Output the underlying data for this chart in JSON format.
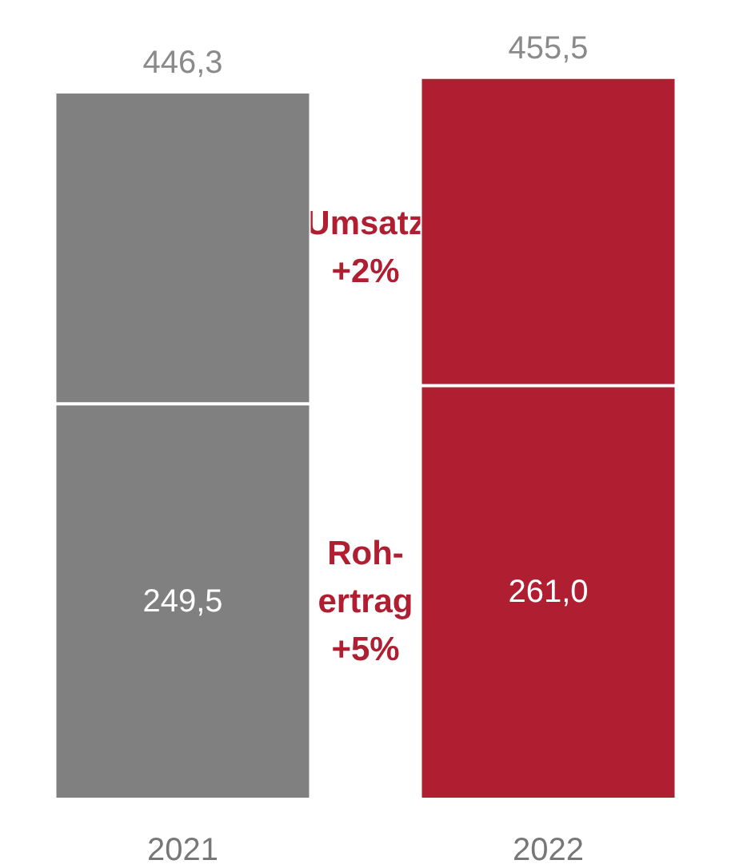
{
  "chart_data": {
    "type": "bar",
    "stacked": true,
    "categories": [
      "2021",
      "2022"
    ],
    "series": [
      {
        "colors": [
          "#808080",
          "#b01e31"
        ],
        "values": [
          249.5,
          261.0
        ],
        "value_labels": [
          "249,5",
          "261,0"
        ]
      },
      {
        "colors": [
          "#808080",
          "#b01e31"
        ],
        "values": [
          196.8,
          194.5
        ]
      }
    ],
    "totals": [
      "446,3",
      "455,5"
    ],
    "annotations": [
      "Umsatz\n+2%",
      "Roh-\nertrag\n+5%"
    ],
    "tick_labels": "x"
  }
}
